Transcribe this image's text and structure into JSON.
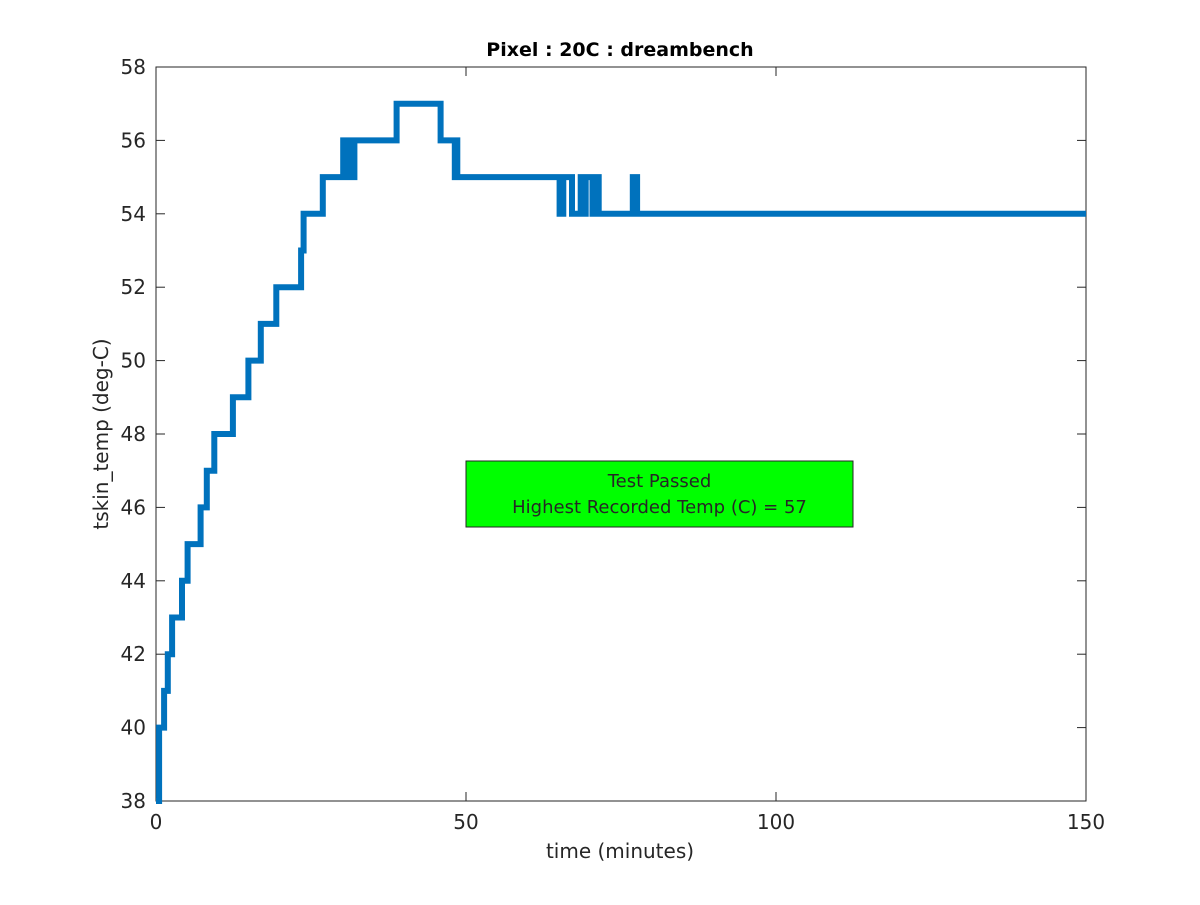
{
  "chart_data": {
    "type": "line",
    "title": "Pixel : 20C : dreambench",
    "xlabel": "time (minutes)",
    "ylabel": "tskin_temp (deg-C)",
    "xlim": [
      0,
      150
    ],
    "ylim": [
      38,
      58
    ],
    "xticks": [
      0,
      50,
      100,
      150
    ],
    "yticks": [
      38,
      40,
      42,
      44,
      46,
      48,
      50,
      52,
      54,
      56,
      58
    ],
    "grid": false,
    "box": true,
    "series": [
      {
        "color": "#0072BD",
        "x": [
          0,
          0.5,
          0.5,
          1.3,
          1.3,
          1.9,
          1.9,
          2.6,
          2.6,
          3.3,
          3.3,
          4.2,
          4.2,
          5.1,
          5.1,
          6.1,
          6.1,
          7.2,
          7.2,
          8.2,
          8.2,
          9.4,
          9.4,
          10.9,
          10.9,
          12.4,
          12.4,
          14.9,
          14.9,
          16.9,
          16.9,
          19.4,
          19.4,
          23.4,
          23.4,
          23.6,
          23.6,
          23.8,
          23.8,
          26.9,
          26.9,
          30.2,
          30.2,
          30.5,
          30.5,
          31.1,
          31.1,
          31.5,
          31.5,
          32.0,
          32.0,
          32.3,
          32.3,
          38.8,
          38.8,
          45.9,
          45.9,
          48.0,
          48.0,
          48.2,
          48.2,
          48.4,
          48.4,
          48.6,
          48.6,
          49.0,
          49.0,
          65.1,
          65.1,
          65.7,
          65.7,
          67.1,
          67.1,
          67.8,
          67.8,
          68.5,
          68.5,
          68.9,
          68.9,
          69.3,
          69.3,
          70.4,
          70.4,
          70.8,
          70.8,
          71.4,
          71.4,
          71.8,
          71.8,
          72.2,
          72.2,
          72.7,
          72.7,
          76.6,
          76.6,
          76.9,
          76.9,
          77.6,
          77.6,
          150
        ],
        "y": [
          38,
          38,
          40,
          40,
          41,
          41,
          42,
          42,
          43,
          43,
          43,
          43,
          44,
          44,
          45,
          45,
          45,
          45,
          46,
          46,
          47,
          47,
          48,
          48,
          48,
          48,
          49,
          49,
          50,
          50,
          51,
          51,
          52,
          52,
          53,
          53,
          53,
          53,
          54,
          54,
          55,
          55,
          56,
          56,
          55,
          55,
          56,
          56,
          55,
          55,
          56,
          56,
          56,
          56,
          57,
          57,
          56,
          56,
          56,
          56,
          55,
          55,
          56,
          56,
          55,
          55,
          55,
          55,
          54,
          54,
          55,
          55,
          54,
          54,
          54,
          54,
          55,
          55,
          54,
          54,
          55,
          55,
          54,
          54,
          55,
          55,
          54,
          54,
          54,
          54,
          54,
          54,
          54,
          54,
          54,
          54,
          55,
          55,
          54,
          54
        ]
      }
    ],
    "annotation": {
      "lines": [
        "Test Passed",
        "Highest Recorded Temp (C) = 57"
      ],
      "background": "#00FF00"
    }
  }
}
